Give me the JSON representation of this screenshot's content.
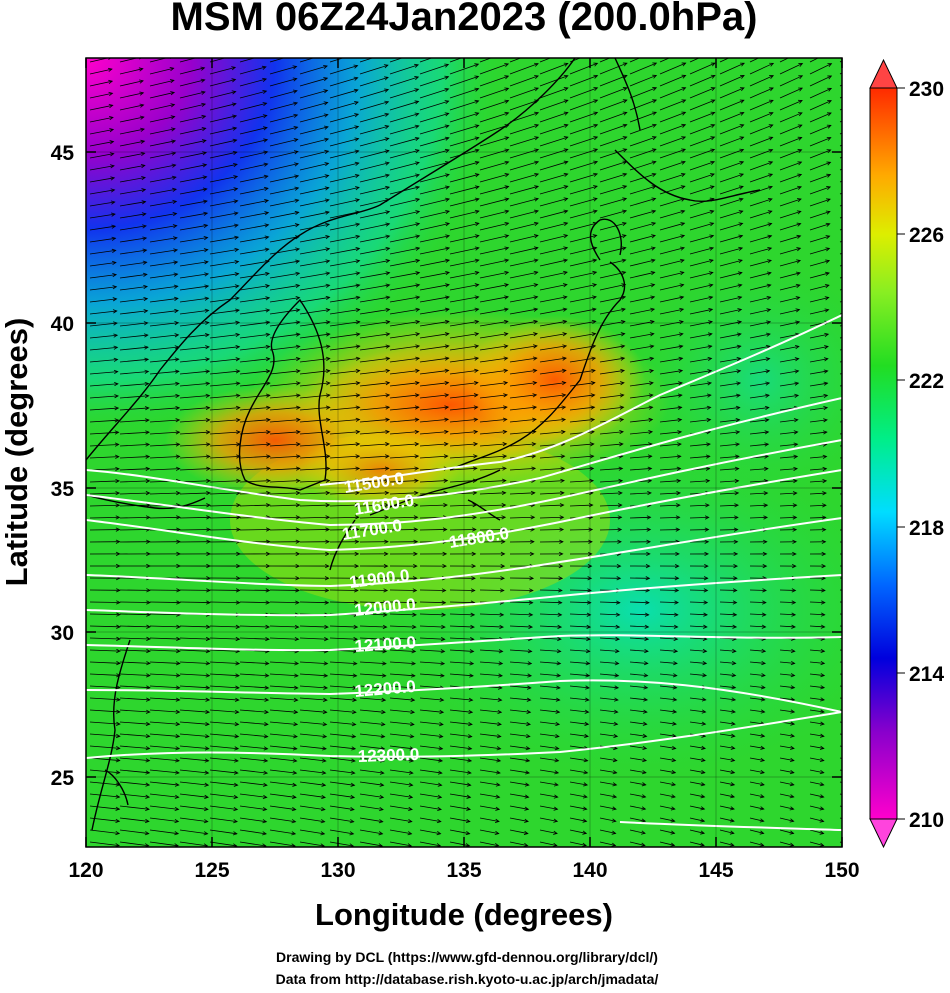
{
  "title": "MSM 06Z24Jan2023 (200.0hPa)",
  "x_axis": {
    "label": "Longitude (degrees)",
    "range": [
      120,
      150
    ],
    "ticks": [
      "120",
      "125",
      "130",
      "135",
      "140",
      "145",
      "150"
    ]
  },
  "y_axis": {
    "label": "Latitude  (degrees)",
    "range": [
      22.5,
      48
    ],
    "ticks": [
      "25",
      "30",
      "35",
      "40",
      "45"
    ]
  },
  "colorbar": {
    "range": [
      210,
      230
    ],
    "labels": [
      "230",
      "226",
      "222",
      "218",
      "214",
      "210"
    ]
  },
  "contours": [
    {
      "label": "11500.0"
    },
    {
      "label": "11600.0"
    },
    {
      "label": "11700.0"
    },
    {
      "label": "11800.0"
    },
    {
      "label": "11900.0"
    },
    {
      "label": "12000.0"
    },
    {
      "label": "12100.0"
    },
    {
      "label": "12200.0"
    },
    {
      "label": "12300.0"
    }
  ],
  "credits": {
    "line1": "Drawing by DCL (https://www.gfd-dennou.org/library/dcl/)",
    "line2": "Data from http://database.rish.kyoto-u.ac.jp/arch/jmadata/"
  },
  "colors": {
    "field_low": "#ff00cc",
    "field_mid": "#22dd22",
    "field_high": "#ff2a00",
    "contour": "#ffffff",
    "vector": "#000000"
  }
}
